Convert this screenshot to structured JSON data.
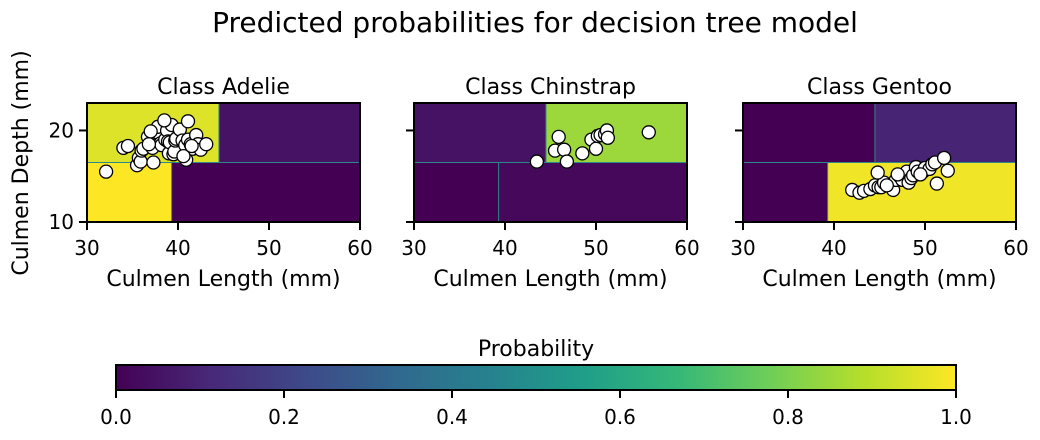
{
  "chart_data": {
    "type": "heatmap",
    "title": "Predicted probabilities for decision tree model",
    "ylabel": "Culmen Depth (mm)",
    "xlabel": "Culmen Length (mm)",
    "xlim": [
      30,
      60
    ],
    "ylim": [
      10,
      23
    ],
    "xticks": [
      30,
      40,
      50,
      60
    ],
    "yticks": [
      10,
      20
    ],
    "split_x": 44.5,
    "split_x_low": 39.3,
    "split_y": 16.5,
    "colormap": [
      "#440154",
      "#482878",
      "#3e4989",
      "#31688e",
      "#26828e",
      "#1f9e89",
      "#35b779",
      "#6ece58",
      "#b5de2b",
      "#fde725"
    ],
    "panels": [
      {
        "title": "Class Adelie",
        "regions": [
          {
            "x": [
              30,
              44.5
            ],
            "y": [
              16.5,
              23
            ],
            "p": 0.95
          },
          {
            "x": [
              44.5,
              60
            ],
            "y": [
              16.5,
              23
            ],
            "p": 0.05
          },
          {
            "x": [
              30,
              39.3
            ],
            "y": [
              10,
              16.5
            ],
            "p": 1.0
          },
          {
            "x": [
              39.3,
              60
            ],
            "y": [
              10,
              16.5
            ],
            "p": 0.0
          }
        ],
        "points": [
          [
            32.1,
            15.5
          ],
          [
            34.0,
            18.1
          ],
          [
            34.5,
            18.3
          ],
          [
            35.5,
            16.2
          ],
          [
            35.7,
            17.0
          ],
          [
            35.9,
            16.6
          ],
          [
            36.0,
            17.8
          ],
          [
            36.2,
            18.0
          ],
          [
            36.7,
            19.3
          ],
          [
            37.2,
            18.1
          ],
          [
            37.3,
            16.5
          ],
          [
            37.7,
            19.8
          ],
          [
            37.8,
            20.4
          ],
          [
            38.1,
            18.6
          ],
          [
            38.2,
            18.4
          ],
          [
            38.6,
            19.0
          ],
          [
            38.8,
            20.0
          ],
          [
            38.9,
            18.8
          ],
          [
            39.0,
            17.5
          ],
          [
            39.1,
            18.7
          ],
          [
            39.3,
            20.6
          ],
          [
            39.5,
            17.4
          ],
          [
            39.6,
            17.7
          ],
          [
            39.7,
            18.9
          ],
          [
            39.8,
            19.1
          ],
          [
            40.2,
            20.1
          ],
          [
            40.5,
            18.9
          ],
          [
            40.8,
            18.4
          ],
          [
            40.9,
            16.8
          ],
          [
            41.1,
            19.0
          ],
          [
            41.4,
            18.5
          ],
          [
            41.1,
            21.0
          ],
          [
            41.6,
            18.0
          ],
          [
            42.0,
            19.5
          ],
          [
            42.2,
            18.5
          ],
          [
            42.5,
            17.9
          ],
          [
            43.1,
            18.5
          ],
          [
            38.5,
            21.1
          ],
          [
            36.8,
            18.5
          ],
          [
            40.6,
            17.2
          ],
          [
            41.5,
            18.3
          ],
          [
            37.0,
            19.9
          ]
        ]
      },
      {
        "title": "Class Chinstrap",
        "regions": [
          {
            "x": [
              30,
              44.5
            ],
            "y": [
              16.5,
              23
            ],
            "p": 0.05
          },
          {
            "x": [
              44.5,
              60
            ],
            "y": [
              16.5,
              23
            ],
            "p": 0.85
          },
          {
            "x": [
              30,
              39.3
            ],
            "y": [
              10,
              16.5
            ],
            "p": 0.0
          },
          {
            "x": [
              39.3,
              60
            ],
            "y": [
              10,
              16.5
            ],
            "p": 0.02
          }
        ],
        "points": [
          [
            43.5,
            16.6
          ],
          [
            45.5,
            17.8
          ],
          [
            45.9,
            19.3
          ],
          [
            46.5,
            17.9
          ],
          [
            46.8,
            16.6
          ],
          [
            48.5,
            17.5
          ],
          [
            49.5,
            19.0
          ],
          [
            50.0,
            18.0
          ],
          [
            50.2,
            19.4
          ],
          [
            50.5,
            19.5
          ],
          [
            51.0,
            19.6
          ],
          [
            51.2,
            20.0
          ],
          [
            51.3,
            19.2
          ],
          [
            55.8,
            19.8
          ]
        ]
      },
      {
        "title": "Class Gentoo",
        "regions": [
          {
            "x": [
              30,
              44.5
            ],
            "y": [
              16.5,
              23
            ],
            "p": 0.0
          },
          {
            "x": [
              44.5,
              60
            ],
            "y": [
              16.5,
              23
            ],
            "p": 0.1
          },
          {
            "x": [
              30,
              39.3
            ],
            "y": [
              10,
              16.5
            ],
            "p": 0.0
          },
          {
            "x": [
              39.3,
              60
            ],
            "y": [
              10,
              16.5
            ],
            "p": 0.98
          }
        ],
        "points": [
          [
            42.0,
            13.5
          ],
          [
            42.8,
            13.2
          ],
          [
            43.3,
            13.4
          ],
          [
            44.0,
            13.6
          ],
          [
            44.5,
            14.0
          ],
          [
            44.9,
            13.8
          ],
          [
            45.2,
            13.8
          ],
          [
            45.5,
            14.3
          ],
          [
            44.8,
            15.4
          ],
          [
            46.5,
            13.5
          ],
          [
            46.8,
            14.6
          ],
          [
            47.2,
            15.0
          ],
          [
            47.5,
            14.6
          ],
          [
            48.0,
            15.5
          ],
          [
            48.2,
            14.3
          ],
          [
            48.5,
            14.8
          ],
          [
            48.7,
            15.1
          ],
          [
            49.0,
            16.0
          ],
          [
            49.2,
            15.5
          ],
          [
            49.8,
            15.5
          ],
          [
            50.0,
            15.9
          ],
          [
            50.5,
            15.8
          ],
          [
            50.8,
            16.3
          ],
          [
            51.1,
            16.5
          ],
          [
            51.3,
            14.2
          ],
          [
            52.1,
            17.0
          ],
          [
            52.5,
            15.6
          ],
          [
            47.0,
            15.2
          ],
          [
            45.8,
            14.0
          ],
          [
            49.5,
            15.2
          ]
        ]
      }
    ],
    "colorbar": {
      "label": "Probability",
      "ticks": [
        "0.0",
        "0.2",
        "0.4",
        "0.6",
        "0.8",
        "1.0"
      ],
      "range": [
        0,
        1
      ]
    }
  }
}
